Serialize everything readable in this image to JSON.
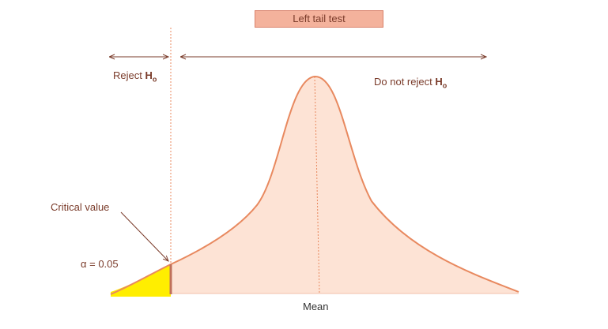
{
  "title": "Left tail test",
  "labels": {
    "reject": "Reject",
    "not_reject": "Do not reject",
    "hypothesis": "H",
    "hypothesis_sub": "o",
    "critical_value": "Critical value",
    "alpha": "α = 0.05",
    "mean": "Mean"
  },
  "colors": {
    "curve": "#e8895f",
    "fill": "#fde3d5",
    "rejection_region": "#ffee00",
    "critical_edge": "#c0705a",
    "text": "#7a3b2a",
    "arrows": "#7a3b2a"
  }
}
